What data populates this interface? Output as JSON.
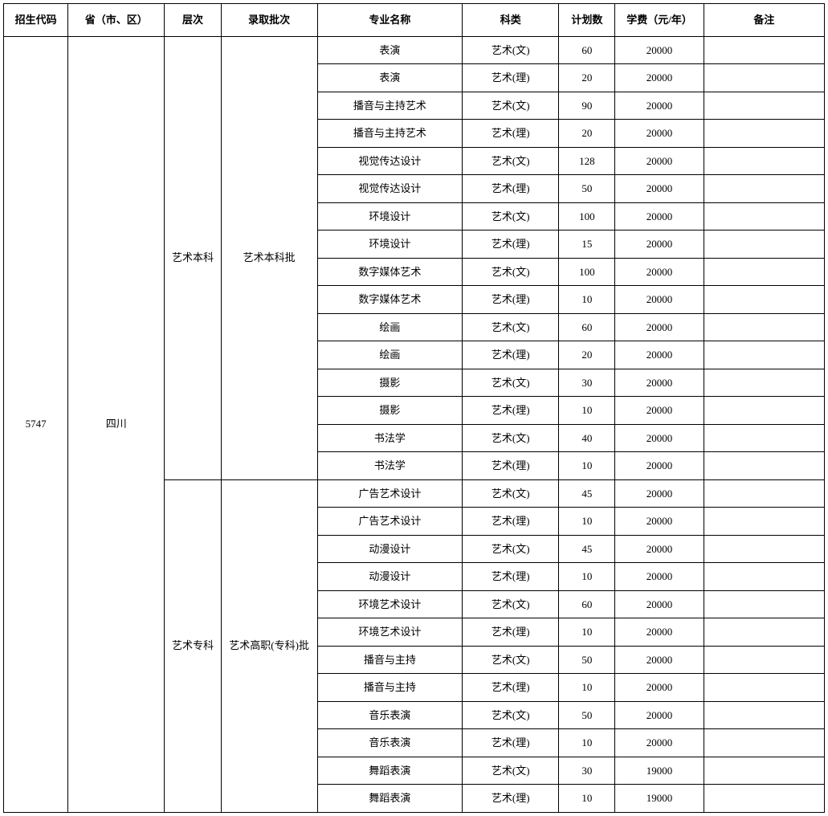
{
  "columns": [
    {
      "key": "code",
      "label": "招生代码",
      "width": 80
    },
    {
      "key": "province",
      "label": "省（市、区）",
      "width": 120
    },
    {
      "key": "level",
      "label": "层次",
      "width": 70
    },
    {
      "key": "batch",
      "label": "录取批次",
      "width": 120
    },
    {
      "key": "major",
      "label": "专业名称",
      "width": 180
    },
    {
      "key": "category",
      "label": "科类",
      "width": 120
    },
    {
      "key": "plan",
      "label": "计划数",
      "width": 70
    },
    {
      "key": "fee",
      "label": "学费（元/年）",
      "width": 110
    },
    {
      "key": "remark",
      "label": "备注",
      "width": 150
    }
  ],
  "code": "5747",
  "province": "四川",
  "groups": [
    {
      "level": "艺术本科",
      "batch": "艺术本科批",
      "rows": [
        {
          "major": "表演",
          "category": "艺术(文)",
          "plan": "60",
          "fee": "20000",
          "remark": ""
        },
        {
          "major": "表演",
          "category": "艺术(理)",
          "plan": "20",
          "fee": "20000",
          "remark": ""
        },
        {
          "major": "播音与主持艺术",
          "category": "艺术(文)",
          "plan": "90",
          "fee": "20000",
          "remark": ""
        },
        {
          "major": "播音与主持艺术",
          "category": "艺术(理)",
          "plan": "20",
          "fee": "20000",
          "remark": ""
        },
        {
          "major": "视觉传达设计",
          "category": "艺术(文)",
          "plan": "128",
          "fee": "20000",
          "remark": ""
        },
        {
          "major": "视觉传达设计",
          "category": "艺术(理)",
          "plan": "50",
          "fee": "20000",
          "remark": ""
        },
        {
          "major": "环境设计",
          "category": "艺术(文)",
          "plan": "100",
          "fee": "20000",
          "remark": ""
        },
        {
          "major": "环境设计",
          "category": "艺术(理)",
          "plan": "15",
          "fee": "20000",
          "remark": ""
        },
        {
          "major": "数字媒体艺术",
          "category": "艺术(文)",
          "plan": "100",
          "fee": "20000",
          "remark": ""
        },
        {
          "major": "数字媒体艺术",
          "category": "艺术(理)",
          "plan": "10",
          "fee": "20000",
          "remark": ""
        },
        {
          "major": "绘画",
          "category": "艺术(文)",
          "plan": "60",
          "fee": "20000",
          "remark": ""
        },
        {
          "major": "绘画",
          "category": "艺术(理)",
          "plan": "20",
          "fee": "20000",
          "remark": ""
        },
        {
          "major": "摄影",
          "category": "艺术(文)",
          "plan": "30",
          "fee": "20000",
          "remark": ""
        },
        {
          "major": "摄影",
          "category": "艺术(理)",
          "plan": "10",
          "fee": "20000",
          "remark": ""
        },
        {
          "major": "书法学",
          "category": "艺术(文)",
          "plan": "40",
          "fee": "20000",
          "remark": ""
        },
        {
          "major": "书法学",
          "category": "艺术(理)",
          "plan": "10",
          "fee": "20000",
          "remark": ""
        }
      ]
    },
    {
      "level": "艺术专科",
      "batch": "艺术高职(专科)批",
      "rows": [
        {
          "major": "广告艺术设计",
          "category": "艺术(文)",
          "plan": "45",
          "fee": "20000",
          "remark": ""
        },
        {
          "major": "广告艺术设计",
          "category": "艺术(理)",
          "plan": "10",
          "fee": "20000",
          "remark": ""
        },
        {
          "major": "动漫设计",
          "category": "艺术(文)",
          "plan": "45",
          "fee": "20000",
          "remark": ""
        },
        {
          "major": "动漫设计",
          "category": "艺术(理)",
          "plan": "10",
          "fee": "20000",
          "remark": ""
        },
        {
          "major": "环境艺术设计",
          "category": "艺术(文)",
          "plan": "60",
          "fee": "20000",
          "remark": ""
        },
        {
          "major": "环境艺术设计",
          "category": "艺术(理)",
          "plan": "10",
          "fee": "20000",
          "remark": ""
        },
        {
          "major": "播音与主持",
          "category": "艺术(文)",
          "plan": "50",
          "fee": "20000",
          "remark": ""
        },
        {
          "major": "播音与主持",
          "category": "艺术(理)",
          "plan": "10",
          "fee": "20000",
          "remark": ""
        },
        {
          "major": "音乐表演",
          "category": "艺术(文)",
          "plan": "50",
          "fee": "20000",
          "remark": ""
        },
        {
          "major": "音乐表演",
          "category": "艺术(理)",
          "plan": "10",
          "fee": "20000",
          "remark": ""
        },
        {
          "major": "舞蹈表演",
          "category": "艺术(文)",
          "plan": "30",
          "fee": "19000",
          "remark": ""
        },
        {
          "major": "舞蹈表演",
          "category": "艺术(理)",
          "plan": "10",
          "fee": "19000",
          "remark": ""
        }
      ]
    }
  ],
  "style": {
    "border_color": "#000000",
    "background_color": "#ffffff",
    "header_font_weight": "bold",
    "cell_font_size": 13,
    "font_family": "SimSun"
  }
}
